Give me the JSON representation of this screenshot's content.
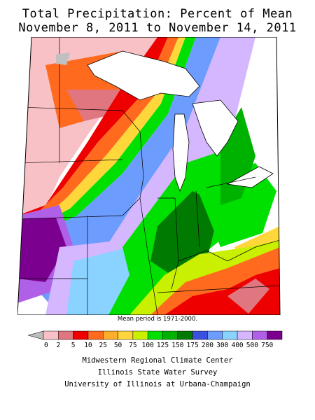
{
  "title_line1": "Total Precipitation: Percent of Mean",
  "title_line2": "November 8, 2011 to November 14, 2011",
  "note": "Mean period is 1971-2000.",
  "legend": {
    "colors": [
      "#f7c1c6",
      "#e0767f",
      "#ee0000",
      "#ff6a1f",
      "#ffae2a",
      "#ffd73a",
      "#c8f000",
      "#00e000",
      "#00b200",
      "#007a00",
      "#3c50e0",
      "#6d9cff",
      "#8ad2ff",
      "#d5b7ff",
      "#b060e6",
      "#7b0090"
    ],
    "labels": [
      "0",
      "2",
      "5",
      "10",
      "25",
      "50",
      "75",
      "100",
      "125",
      "150",
      "175",
      "200",
      "300",
      "400",
      "500",
      "750"
    ]
  },
  "credits": [
    "Midwestern Regional Climate Center",
    "Illinois State Water Survey",
    "University of Illinois at Urbana-Champaign"
  ]
}
